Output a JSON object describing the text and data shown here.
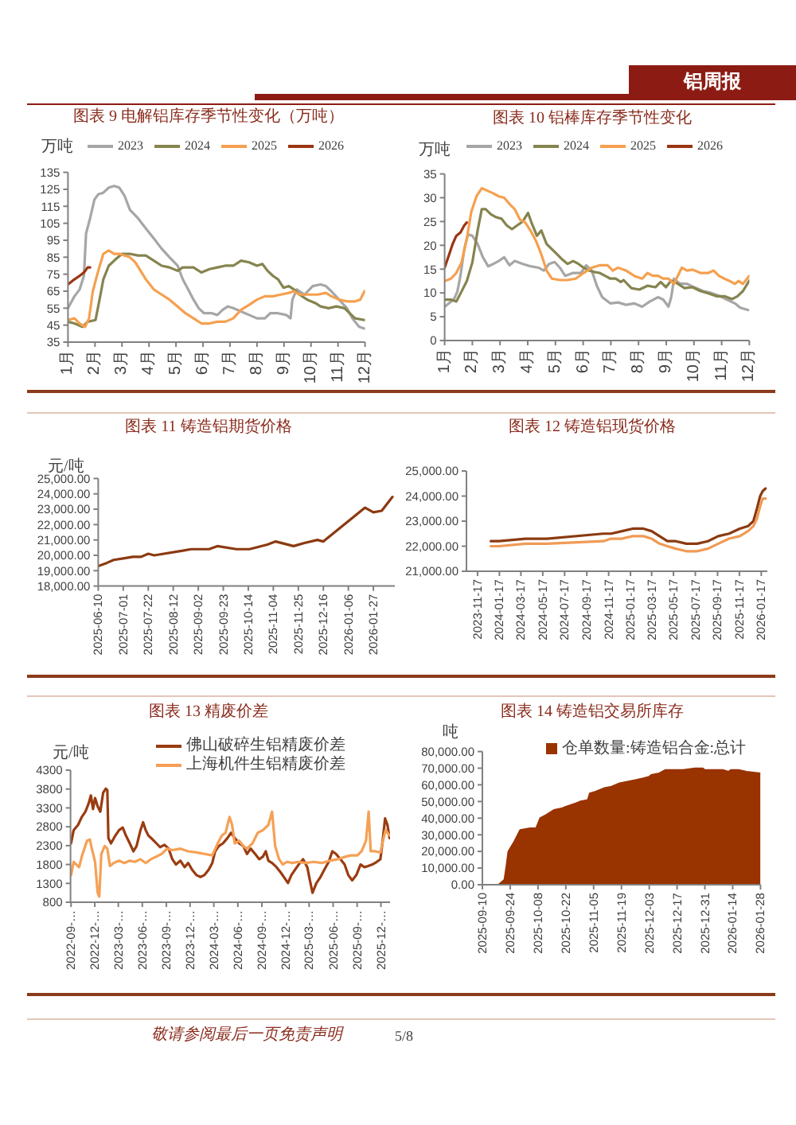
{
  "chart_data": [
    {
      "type": "other",
      "title": "铝周报"
    },
    {
      "type": "line",
      "title": "图表 9 电解铝库存季节性变化（万吨）",
      "ylabel": "万吨",
      "legend": "top",
      "xlim": [
        1,
        12
      ],
      "xticks": [
        {
          "value": 1,
          "label": "1月"
        },
        {
          "value": 2,
          "label": "2月"
        },
        {
          "value": 3,
          "label": "3月"
        },
        {
          "value": 4,
          "label": "4月"
        },
        {
          "value": 5,
          "label": "5月"
        },
        {
          "value": 6,
          "label": "6月"
        },
        {
          "value": 7,
          "label": "7月"
        },
        {
          "value": 8,
          "label": "8月"
        },
        {
          "value": 9,
          "label": "9月"
        },
        {
          "value": 10,
          "label": "10月"
        },
        {
          "value": 11,
          "label": "11月"
        },
        {
          "value": 12,
          "label": "12月"
        }
      ],
      "ylim": [
        35,
        135
      ],
      "yticks": [
        35,
        45,
        55,
        65,
        75,
        85,
        95,
        105,
        115,
        125,
        135
      ],
      "series": [
        {
          "name": "2023",
          "color": "#a6a6a6",
          "x": [
            1.0,
            1.24,
            1.43,
            1.59,
            1.67,
            1.82,
            1.98,
            2.12,
            2.31,
            2.51,
            2.71,
            2.9,
            3.1,
            3.29,
            3.59,
            3.88,
            4.18,
            4.47,
            4.76,
            5.06,
            5.25,
            5.45,
            5.65,
            5.84,
            6.04,
            6.33,
            6.53,
            6.73,
            6.92,
            7.12,
            7.41,
            7.71,
            8.0,
            8.29,
            8.49,
            8.78,
            9.08,
            9.24,
            9.31,
            9.47,
            9.76,
            10.06,
            10.35,
            10.55,
            10.75,
            11.04,
            11.33,
            11.53,
            11.78,
            11.98
          ],
          "values": [
            55,
            62,
            66,
            74,
            99,
            108,
            119,
            122,
            123,
            126,
            127,
            126,
            121,
            113,
            108,
            102,
            96,
            90,
            85,
            80,
            72,
            66,
            60,
            55,
            52,
            52,
            51,
            54,
            56,
            55,
            53,
            51,
            49,
            49,
            52,
            52,
            51,
            49,
            60,
            66,
            63,
            68,
            69,
            68,
            65,
            60,
            55,
            49,
            44,
            43
          ]
        },
        {
          "name": "2024",
          "color": "#86844f",
          "x": [
            1.0,
            1.24,
            1.53,
            1.73,
            2.02,
            2.18,
            2.31,
            2.51,
            2.71,
            3.0,
            3.29,
            3.59,
            3.88,
            4.18,
            4.47,
            4.76,
            5.06,
            5.25,
            5.65,
            5.94,
            6.24,
            6.53,
            6.82,
            7.12,
            7.41,
            7.71,
            8.0,
            8.2,
            8.39,
            8.59,
            8.78,
            8.98,
            9.18,
            9.37,
            9.57,
            9.86,
            10.16,
            10.35,
            10.65,
            10.94,
            11.24,
            11.43,
            11.63,
            11.98
          ],
          "values": [
            47,
            46,
            44,
            47,
            48,
            61,
            72,
            80,
            83,
            87,
            87,
            86,
            86,
            83,
            80,
            79,
            77,
            79,
            79,
            76,
            78,
            79,
            80,
            80,
            83,
            82,
            80,
            81,
            77,
            74,
            72,
            67,
            68,
            66,
            63,
            60,
            58,
            56,
            55,
            56,
            55,
            52,
            49,
            48
          ]
        },
        {
          "name": "2025",
          "color": "#f5a04f",
          "x": [
            1.0,
            1.24,
            1.43,
            1.63,
            1.78,
            1.92,
            2.12,
            2.31,
            2.51,
            2.71,
            2.9,
            3.1,
            3.29,
            3.49,
            3.69,
            3.88,
            4.18,
            4.47,
            4.76,
            5.06,
            5.35,
            5.65,
            5.94,
            6.24,
            6.53,
            6.82,
            7.12,
            7.41,
            7.71,
            8.0,
            8.29,
            8.59,
            8.88,
            9.18,
            9.37,
            9.57,
            9.86,
            10.25,
            10.55,
            10.75,
            11.04,
            11.33,
            11.63,
            11.82,
            11.98
          ],
          "values": [
            48,
            49,
            46,
            44,
            49,
            65,
            77,
            87,
            89,
            87,
            87,
            86,
            85,
            82,
            77,
            72,
            66,
            63,
            60,
            56,
            52,
            49,
            46,
            46,
            47,
            47,
            49,
            54,
            57,
            60,
            62,
            62,
            63,
            64,
            65,
            63,
            63,
            63,
            64,
            62,
            60,
            59,
            59,
            60,
            65
          ]
        },
        {
          "name": "2026",
          "color": "#9b3512",
          "x": [
            1.0,
            1.24,
            1.43,
            1.59,
            1.73,
            1.82
          ],
          "values": [
            69,
            72,
            74,
            76,
            79,
            79
          ]
        }
      ]
    },
    {
      "type": "line",
      "title": "图表 10 铝棒库存季节性变化",
      "ylabel": "万吨",
      "legend": "top",
      "xlim": [
        1,
        12
      ],
      "xticks": [
        {
          "value": 1,
          "label": "1月"
        },
        {
          "value": 2,
          "label": "2月"
        },
        {
          "value": 3,
          "label": "3月"
        },
        {
          "value": 4,
          "label": "4月"
        },
        {
          "value": 5,
          "label": "5月"
        },
        {
          "value": 6,
          "label": "6月"
        },
        {
          "value": 7,
          "label": "7月"
        },
        {
          "value": 8,
          "label": "8月"
        },
        {
          "value": 9,
          "label": "9月"
        },
        {
          "value": 10,
          "label": "10月"
        },
        {
          "value": 11,
          "label": "11月"
        },
        {
          "value": 12,
          "label": "12月"
        }
      ],
      "ylim": [
        0,
        35
      ],
      "yticks": [
        0,
        5,
        10,
        15,
        20,
        25,
        30,
        35
      ],
      "series": [
        {
          "name": "2023",
          "color": "#a6a6a6",
          "x": [
            1.0,
            1.19,
            1.33,
            1.46,
            1.57,
            1.71,
            1.84,
            2.0,
            2.19,
            2.38,
            2.57,
            2.76,
            2.95,
            3.15,
            3.34,
            3.53,
            3.82,
            4.1,
            4.39,
            4.58,
            4.77,
            4.97,
            5.16,
            5.35,
            5.64,
            5.92,
            6.11,
            6.31,
            6.5,
            6.69,
            6.98,
            7.26,
            7.55,
            7.84,
            8.13,
            8.41,
            8.7,
            8.89,
            9.08,
            9.18,
            9.28,
            9.47,
            9.75,
            10.04,
            10.33,
            10.62,
            10.9,
            11.19,
            11.48,
            11.67,
            11.96
          ],
          "values": [
            7.1,
            8.0,
            8.6,
            10.3,
            13.6,
            19.2,
            22.3,
            22.0,
            20.3,
            17.5,
            15.6,
            16.1,
            16.7,
            17.5,
            15.8,
            16.7,
            16.1,
            15.6,
            15.3,
            14.7,
            16.1,
            16.5,
            15.3,
            13.6,
            14.2,
            14.2,
            15.8,
            14.7,
            11.4,
            9.1,
            7.8,
            8.0,
            7.5,
            7.8,
            7.1,
            8.2,
            9.1,
            8.6,
            7.1,
            9.1,
            13.0,
            12.0,
            11.9,
            11.1,
            10.4,
            10.0,
            9.4,
            8.6,
            7.8,
            6.9,
            6.4
          ]
        },
        {
          "name": "2024",
          "color": "#86844f",
          "x": [
            1.0,
            1.23,
            1.42,
            1.61,
            1.8,
            2.0,
            2.19,
            2.34,
            2.48,
            2.67,
            2.86,
            3.05,
            3.24,
            3.43,
            3.62,
            3.82,
            4.01,
            4.14,
            4.33,
            4.49,
            4.68,
            4.87,
            5.06,
            5.25,
            5.44,
            5.64,
            5.83,
            6.02,
            6.21,
            6.4,
            6.59,
            6.79,
            6.98,
            7.17,
            7.36,
            7.46,
            7.74,
            8.03,
            8.32,
            8.61,
            8.8,
            8.99,
            9.18,
            9.37,
            9.66,
            9.95,
            10.23,
            10.52,
            10.81,
            11.1,
            11.38,
            11.57,
            11.77,
            12.0
          ],
          "values": [
            8.6,
            8.6,
            8.2,
            10.3,
            12.5,
            16.4,
            23.1,
            27.6,
            27.6,
            26.5,
            25.9,
            25.6,
            24.2,
            23.4,
            24.2,
            25.0,
            26.8,
            24.7,
            22.0,
            23.1,
            20.3,
            19.2,
            18.1,
            17.0,
            16.1,
            16.7,
            16.1,
            15.3,
            14.7,
            14.4,
            14.2,
            13.6,
            13.0,
            13.0,
            12.3,
            12.7,
            11.0,
            10.7,
            11.5,
            11.2,
            12.3,
            11.2,
            12.6,
            12.1,
            11.0,
            11.2,
            10.4,
            9.9,
            9.3,
            9.3,
            8.7,
            9.3,
            10.4,
            12.6
          ]
        },
        {
          "name": "2025",
          "color": "#f5a04f",
          "x": [
            1.0,
            1.23,
            1.42,
            1.61,
            1.8,
            1.96,
            2.15,
            2.34,
            2.57,
            2.76,
            2.95,
            3.15,
            3.34,
            3.53,
            3.72,
            3.91,
            4.1,
            4.3,
            4.49,
            4.68,
            4.87,
            5.16,
            5.44,
            5.73,
            6.02,
            6.31,
            6.59,
            6.88,
            7.07,
            7.26,
            7.55,
            7.84,
            8.13,
            8.32,
            8.51,
            8.7,
            8.89,
            9.08,
            9.28,
            9.56,
            9.75,
            9.95,
            10.23,
            10.52,
            10.71,
            10.9,
            11.1,
            11.29,
            11.48,
            11.61,
            11.77,
            12.0
          ],
          "values": [
            12.5,
            13.0,
            14.2,
            16.4,
            21.4,
            27.0,
            30.3,
            32.0,
            31.4,
            30.9,
            30.3,
            30.0,
            28.7,
            27.6,
            25.4,
            24.8,
            23.1,
            20.9,
            18.1,
            14.7,
            13.0,
            12.7,
            12.7,
            13.0,
            14.2,
            15.3,
            15.8,
            15.8,
            14.7,
            15.3,
            14.7,
            13.6,
            13.0,
            14.2,
            13.6,
            13.6,
            13.0,
            13.0,
            11.9,
            15.3,
            14.7,
            14.9,
            14.2,
            14.2,
            14.7,
            13.6,
            13.0,
            12.5,
            11.9,
            12.5,
            11.9,
            13.6
          ]
        },
        {
          "name": "2026",
          "color": "#9b3512",
          "x": [
            1.0,
            1.13,
            1.29,
            1.42,
            1.57,
            1.71,
            1.8
          ],
          "values": [
            15.3,
            17.5,
            20.3,
            22.0,
            22.7,
            24.2,
            24.8
          ]
        }
      ]
    },
    {
      "type": "line",
      "title": "图表 11 铸造铝期货价格",
      "ylabel": "元/吨",
      "xlim": [
        "2025-06-10",
        "2026-02-14"
      ],
      "xticks": [
        "2025-06-10",
        "2025-07-01",
        "2025-07-22",
        "2025-08-12",
        "2025-09-02",
        "2025-09-23",
        "2025-10-14",
        "2025-11-04",
        "2025-11-25",
        "2025-12-16",
        "2026-01-06",
        "2026-01-27"
      ],
      "ylim": [
        18000,
        25000
      ],
      "yticks": [
        {
          "value": 18000,
          "label": "18,000.00"
        },
        {
          "value": 19000,
          "label": "19,000.00"
        },
        {
          "value": 20000,
          "label": "20,000.00"
        },
        {
          "value": 21000,
          "label": "21,000.00"
        },
        {
          "value": 22000,
          "label": "22,000.00"
        },
        {
          "value": 23000,
          "label": "23,000.00"
        },
        {
          "value": 24000,
          "label": "24,000.00"
        },
        {
          "value": 25000,
          "label": "25,000.00"
        }
      ],
      "series": [
        {
          "color": "#8b3a10",
          "x": [
            "2025-06-10",
            "2025-06-17",
            "2025-06-23",
            "2025-07-01",
            "2025-07-09",
            "2025-07-16",
            "2025-07-22",
            "2025-07-27",
            "2025-08-20",
            "2025-08-27",
            "2025-09-11",
            "2025-09-18",
            "2025-10-04",
            "2025-10-15",
            "2025-10-30",
            "2025-11-06",
            "2025-11-21",
            "2025-11-30",
            "2025-12-11",
            "2025-12-16",
            "2026-01-12",
            "2026-01-20",
            "2026-01-27",
            "2026-02-03",
            "2026-02-12"
          ],
          "values": [
            19300,
            19500,
            19700,
            19800,
            19900,
            19900,
            20100,
            20000,
            20300,
            20400,
            20400,
            20600,
            20400,
            20400,
            20700,
            20900,
            20600,
            20800,
            21000,
            20900,
            22600,
            23100,
            22800,
            22900,
            23800
          ]
        }
      ]
    },
    {
      "type": "line",
      "title": "图表 12 铸造铝现货价格",
      "xlim": [
        "2023-10-17",
        "2026-02-03"
      ],
      "xticks": [
        "2023-11-17",
        "2024-01-17",
        "2024-03-17",
        "2024-05-17",
        "2024-07-17",
        "2024-09-17",
        "2024-11-17",
        "2025-01-17",
        "2025-03-17",
        "2025-05-17",
        "2025-07-17",
        "2025-09-17",
        "2025-11-17",
        "2026-01-17"
      ],
      "ylim": [
        21000,
        25000
      ],
      "yticks": [
        {
          "value": 21000,
          "label": "21,000.00"
        },
        {
          "value": 22000,
          "label": "22,000.00"
        },
        {
          "value": 23000,
          "label": "23,000.00"
        },
        {
          "value": 24000,
          "label": "24,000.00"
        },
        {
          "value": 25000,
          "label": "25,000.00"
        }
      ],
      "series": [
        {
          "color": "#8b3a10",
          "x": [
            "2023-12-24",
            "2024-01-16",
            "2024-03-30",
            "2024-04-29",
            "2024-05-29",
            "2024-11-02",
            "2024-11-24",
            "2024-12-24",
            "2025-01-23",
            "2025-02-22",
            "2025-03-17",
            "2025-04-08",
            "2025-04-30",
            "2025-05-23",
            "2025-06-22",
            "2025-07-22",
            "2025-08-21",
            "2025-09-19",
            "2025-10-19",
            "2025-11-18",
            "2025-12-11",
            "2025-12-26",
            "2026-01-05",
            "2026-01-14",
            "2026-01-21",
            "2026-01-29"
          ],
          "values": [
            22200,
            22200,
            22300,
            22300,
            22300,
            22500,
            22500,
            22600,
            22700,
            22700,
            22600,
            22400,
            22200,
            22200,
            22100,
            22100,
            22200,
            22400,
            22500,
            22700,
            22800,
            23000,
            23500,
            24000,
            24200,
            24300
          ]
        },
        {
          "color": "#f09a55",
          "x": [
            "2023-12-24",
            "2024-01-16",
            "2024-03-30",
            "2024-04-29",
            "2024-05-29",
            "2024-11-02",
            "2024-11-24",
            "2024-12-24",
            "2025-01-23",
            "2025-02-22",
            "2025-03-17",
            "2025-04-08",
            "2025-04-30",
            "2025-05-23",
            "2025-06-22",
            "2025-07-22",
            "2025-08-21",
            "2025-09-19",
            "2025-10-19",
            "2025-11-18",
            "2025-12-11",
            "2025-12-26",
            "2026-01-05",
            "2026-01-14",
            "2026-01-21",
            "2026-01-29"
          ],
          "values": [
            22000,
            22000,
            22100,
            22100,
            22100,
            22200,
            22300,
            22300,
            22400,
            22400,
            22300,
            22100,
            22000,
            21900,
            21800,
            21800,
            21900,
            22100,
            22300,
            22400,
            22600,
            22800,
            23100,
            23600,
            23900,
            23900
          ]
        }
      ]
    },
    {
      "type": "line",
      "title": "图表 13 精废价差",
      "ylabel": "元/吨",
      "legend": "top",
      "xlim": [
        "2022-08-30",
        "2026-01-05"
      ],
      "xticks": [
        {
          "value": "2022-09-01",
          "label": "2022-09-…"
        },
        {
          "value": "2022-12-01",
          "label": "2022-12-…"
        },
        {
          "value": "2023-03-01",
          "label": "2023-03-…"
        },
        {
          "value": "2023-06-01",
          "label": "2023-06-…"
        },
        {
          "value": "2023-09-01",
          "label": "2023-09-…"
        },
        {
          "value": "2023-12-01",
          "label": "2023-12-…"
        },
        {
          "value": "2024-03-01",
          "label": "2024-03-…"
        },
        {
          "value": "2024-06-01",
          "label": "2024-06-…"
        },
        {
          "value": "2024-09-01",
          "label": "2024-09-…"
        },
        {
          "value": "2024-12-01",
          "label": "2024-12-…"
        },
        {
          "value": "2025-03-01",
          "label": "2025-03-…"
        },
        {
          "value": "2025-06-01",
          "label": "2025-06-…"
        },
        {
          "value": "2025-09-01",
          "label": "2025-09-…"
        },
        {
          "value": "2025-12-01",
          "label": "2025-12-…"
        }
      ],
      "ylim": [
        800,
        4300
      ],
      "yticks": [
        800,
        1300,
        1800,
        2300,
        2800,
        3300,
        3800,
        4300
      ],
      "series": [
        {
          "name": "佛山破碎生铝精废价差",
          "color": "#9a3c10",
          "x": [
            "2022-09-01",
            "2022-09-11",
            "2022-09-28",
            "2022-10-12",
            "2022-10-26",
            "2022-11-07",
            "2022-11-16",
            "2022-11-24",
            "2022-12-02",
            "2022-12-12",
            "2022-12-22",
            "2023-01-02",
            "2023-01-12",
            "2023-01-18",
            "2023-01-22",
            "2023-02-01",
            "2023-02-18",
            "2023-03-04",
            "2023-03-18",
            "2023-03-30",
            "2023-04-14",
            "2023-04-28",
            "2023-05-10",
            "2023-05-25",
            "2023-06-04",
            "2023-06-14",
            "2023-06-24",
            "2023-07-11",
            "2023-07-25",
            "2023-08-08",
            "2023-08-25",
            "2023-09-10",
            "2023-09-24",
            "2023-10-08",
            "2023-10-25",
            "2023-11-10",
            "2023-11-24",
            "2023-12-09",
            "2023-12-25",
            "2024-01-10",
            "2024-01-25",
            "2024-02-10",
            "2024-02-24",
            "2024-03-06",
            "2024-03-20",
            "2024-04-05",
            "2024-04-22",
            "2024-05-06",
            "2024-05-20",
            "2024-06-06",
            "2024-06-22",
            "2024-07-06",
            "2024-07-20",
            "2024-08-06",
            "2024-08-22",
            "2024-09-05",
            "2024-09-16",
            "2024-09-26",
            "2024-10-10",
            "2024-10-27",
            "2024-11-12",
            "2024-11-26",
            "2024-12-10",
            "2024-12-23",
            "2025-01-06",
            "2025-01-20",
            "2025-02-06",
            "2025-02-22",
            "2025-03-04",
            "2025-03-14",
            "2025-03-29",
            "2025-04-12",
            "2025-04-28",
            "2025-05-15",
            "2025-05-29",
            "2025-06-12",
            "2025-06-29",
            "2025-07-15",
            "2025-07-29",
            "2025-08-13",
            "2025-08-29",
            "2025-09-14",
            "2025-09-29",
            "2025-10-13",
            "2025-10-29",
            "2025-11-15",
            "2025-11-29",
            "2025-12-09",
            "2025-12-17",
            "2025-12-26",
            "2026-01-03"
          ],
          "values": [
            2360,
            2710,
            2850,
            3060,
            3200,
            3410,
            3630,
            3270,
            3560,
            3340,
            3200,
            3700,
            3810,
            3770,
            2500,
            2360,
            2570,
            2710,
            2780,
            2570,
            2360,
            2150,
            2290,
            2710,
            2920,
            2710,
            2570,
            2460,
            2360,
            2260,
            2320,
            2220,
            1940,
            1800,
            1900,
            1730,
            1840,
            1660,
            1520,
            1470,
            1520,
            1660,
            1840,
            2150,
            2290,
            2360,
            2500,
            2640,
            2500,
            2360,
            2290,
            2080,
            2220,
            2080,
            1940,
            2010,
            2150,
            1900,
            1840,
            1730,
            1590,
            1450,
            1310,
            1520,
            1660,
            1800,
            1940,
            1730,
            1380,
            1050,
            1310,
            1450,
            1660,
            1870,
            2150,
            2080,
            1940,
            1800,
            1520,
            1380,
            1520,
            1800,
            1730,
            1760,
            1800,
            1870,
            1940,
            2500,
            3020,
            2850,
            2500
          ]
        },
        {
          "name": "上海机件生铝精废价差",
          "color": "#f5a055",
          "x": [
            "2022-09-01",
            "2022-09-11",
            "2022-09-21",
            "2022-10-02",
            "2022-10-12",
            "2022-10-22",
            "2022-11-01",
            "2022-11-12",
            "2022-11-22",
            "2022-12-02",
            "2022-12-12",
            "2022-12-18",
            "2022-12-26",
            "2023-01-08",
            "2023-01-18",
            "2023-01-28",
            "2023-02-11",
            "2023-03-04",
            "2023-03-24",
            "2023-04-14",
            "2023-05-04",
            "2023-05-25",
            "2023-06-14",
            "2023-07-04",
            "2023-07-25",
            "2023-08-14",
            "2023-09-04",
            "2023-09-24",
            "2023-10-25",
            "2023-11-24",
            "2023-12-25",
            "2024-01-25",
            "2024-02-24",
            "2024-03-16",
            "2024-04-01",
            "2024-04-15",
            "2024-04-30",
            "2024-05-10",
            "2024-05-20",
            "2024-06-06",
            "2024-06-22",
            "2024-07-06",
            "2024-07-27",
            "2024-08-16",
            "2024-09-05",
            "2024-09-26",
            "2024-10-10",
            "2024-10-22",
            "2024-11-06",
            "2024-11-20",
            "2024-12-06",
            "2024-12-27",
            "2025-01-16",
            "2025-02-16",
            "2025-03-19",
            "2025-04-18",
            "2025-05-19",
            "2025-06-19",
            "2025-07-19",
            "2025-08-09",
            "2025-09-02",
            "2025-09-18",
            "2025-10-05",
            "2025-10-15",
            "2025-10-23",
            "2025-11-09",
            "2025-11-29",
            "2025-12-09",
            "2025-12-19",
            "2026-01-03"
          ],
          "values": [
            1520,
            1870,
            1800,
            1730,
            2010,
            2220,
            2430,
            2460,
            2150,
            1870,
            1050,
            950,
            2080,
            2290,
            2220,
            1760,
            1840,
            1900,
            1840,
            1900,
            1870,
            1940,
            1840,
            1940,
            2010,
            2080,
            2220,
            2180,
            2220,
            2150,
            2120,
            2080,
            2040,
            2360,
            2570,
            2640,
            3060,
            2850,
            2360,
            2430,
            2290,
            2220,
            2360,
            2640,
            2710,
            2850,
            3200,
            2290,
            1940,
            1800,
            1870,
            1840,
            1870,
            1840,
            1870,
            1840,
            1900,
            1940,
            2010,
            2040,
            2040,
            2150,
            2430,
            3200,
            2150,
            2150,
            2120,
            2430,
            2710,
            2570
          ]
        }
      ]
    },
    {
      "type": "area",
      "title": "图表 14 铸造铝交易所库存",
      "ylabel": "吨",
      "legend": "top",
      "xlim": [
        "2025-09-10",
        "2026-01-28"
      ],
      "xticks": [
        "2025-09-10",
        "2025-09-24",
        "2025-10-08",
        "2025-10-22",
        "2025-11-05",
        "2025-11-19",
        "2025-12-03",
        "2025-12-17",
        "2025-12-31",
        "2026-01-14",
        "2026-01-28"
      ],
      "ylim": [
        0,
        80000
      ],
      "yticks": [
        {
          "value": 0,
          "label": "0.00"
        },
        {
          "value": 10000,
          "label": "10,000.00"
        },
        {
          "value": 20000,
          "label": "20,000.00"
        },
        {
          "value": 30000,
          "label": "30,000.00"
        },
        {
          "value": 40000,
          "label": "40,000.00"
        },
        {
          "value": 50000,
          "label": "50,000.00"
        },
        {
          "value": 60000,
          "label": "60,000.00"
        },
        {
          "value": 70000,
          "label": "70,000.00"
        },
        {
          "value": 80000,
          "label": "80,000.00"
        }
      ],
      "series": [
        {
          "name": "仓单数量:铸造铝合金:总计",
          "color": "#993300",
          "x": [
            "2025-09-10",
            "2025-09-18",
            "2025-09-21",
            "2025-09-22",
            "2025-09-23",
            "2025-09-26",
            "2025-09-29",
            "2025-10-04",
            "2025-10-07",
            "2025-10-09",
            "2025-10-12",
            "2025-10-16",
            "2025-10-20",
            "2025-10-22",
            "2025-10-27",
            "2025-10-29",
            "2025-11-02",
            "2025-11-03",
            "2025-11-06",
            "2025-11-10",
            "2025-11-14",
            "2025-11-18",
            "2025-11-22",
            "2025-11-26",
            "2025-11-30",
            "2025-12-03",
            "2025-12-04",
            "2025-12-08",
            "2025-12-11",
            "2025-12-15",
            "2025-12-20",
            "2025-12-26",
            "2025-12-30",
            "2025-12-31",
            "2026-01-05",
            "2026-01-09",
            "2026-01-12",
            "2026-01-13",
            "2026-01-17",
            "2026-01-21",
            "2026-01-28"
          ],
          "values": [
            0,
            0,
            3000,
            11000,
            20000,
            26000,
            33000,
            34000,
            34000,
            40000,
            42000,
            45000,
            46000,
            47000,
            49000,
            50000,
            51000,
            55000,
            56000,
            58000,
            59000,
            61000,
            62000,
            63000,
            64000,
            65000,
            66000,
            67000,
            69000,
            69000,
            69000,
            70000,
            70000,
            69000,
            69000,
            69000,
            68000,
            69000,
            69000,
            68000,
            67000
          ]
        }
      ]
    },
    {
      "type": "other",
      "annotations": [
        "敬请参阅最后一页免责声明",
        "5/8"
      ]
    }
  ]
}
